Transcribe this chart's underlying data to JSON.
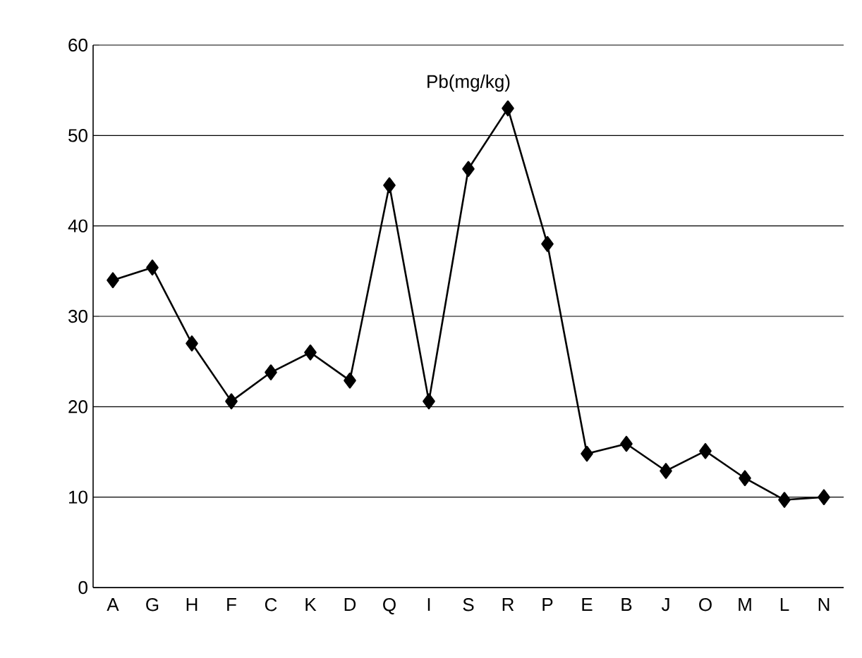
{
  "chart_data": {
    "type": "line",
    "title": "Pb(mg/kg)",
    "categories": [
      "A",
      "G",
      "H",
      "F",
      "C",
      "K",
      "D",
      "Q",
      "I",
      "S",
      "R",
      "P",
      "E",
      "B",
      "J",
      "O",
      "M",
      "L",
      "N"
    ],
    "series": [
      {
        "color": "#000000",
        "values": [
          34.0,
          35.4,
          27.0,
          20.6,
          23.8,
          26.0,
          22.9,
          44.5,
          20.6,
          46.3,
          53.0,
          38.0,
          14.8,
          15.9,
          12.9,
          15.1,
          12.1,
          9.7,
          10.0
        ]
      }
    ],
    "ylim": [
      0,
      60
    ],
    "yticks": [
      0,
      10,
      20,
      30,
      40,
      50,
      60
    ],
    "grid": "y",
    "marker": "diamond",
    "line_style": "solid"
  }
}
